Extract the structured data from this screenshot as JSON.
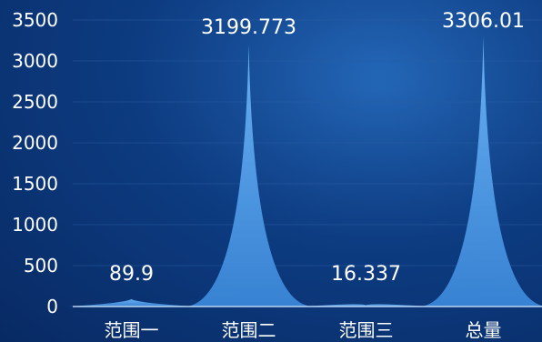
{
  "chart_data": {
    "type": "bar",
    "bar_shape": "pictorial-spike",
    "categories": [
      "范围一",
      "范围二",
      "范围三",
      "总量"
    ],
    "values": [
      89.9,
      3199.773,
      16.337,
      3306.01
    ],
    "data_labels": [
      "89.9",
      "3199.773",
      "16.337",
      "3306.01"
    ],
    "ylim": [
      0,
      3500
    ],
    "yticks": [
      0,
      500,
      1000,
      1500,
      2000,
      2500,
      3000,
      3500
    ],
    "ytick_labels": [
      "0",
      "500",
      "1000",
      "1500",
      "2000",
      "2500",
      "3000",
      "3500"
    ],
    "title": "",
    "xlabel": "",
    "ylabel": "",
    "grid": true,
    "legend": "none",
    "colors": {
      "bar_top": "#5aa8f0",
      "bar_bottom": "#3b82d6",
      "axis": "#b9d4f2",
      "grid": "#2a5ba0",
      "text": "#ffffff"
    }
  }
}
